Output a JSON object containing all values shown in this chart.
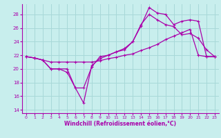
{
  "xlabel": "Windchill (Refroidissement éolien,°C)",
  "bg_color": "#c8eeed",
  "grid_color": "#a8d8d8",
  "line_color": "#aa00aa",
  "xlim": [
    -0.5,
    23.5
  ],
  "ylim": [
    13.5,
    29.5
  ],
  "yticks": [
    14,
    16,
    18,
    20,
    22,
    24,
    26,
    28
  ],
  "xticks": [
    0,
    1,
    2,
    3,
    4,
    5,
    6,
    7,
    8,
    9,
    10,
    11,
    12,
    13,
    14,
    15,
    16,
    17,
    18,
    19,
    20,
    21,
    22,
    23
  ],
  "s1_x": [
    0,
    1,
    2,
    3,
    4,
    5,
    6,
    7,
    8,
    9,
    10,
    11,
    12,
    13,
    14,
    15,
    16,
    17,
    18,
    19,
    20,
    21,
    22,
    23
  ],
  "s1_y": [
    21.8,
    21.6,
    21.3,
    20.0,
    20.0,
    20.0,
    17.2,
    15.0,
    20.5,
    21.5,
    22.0,
    22.5,
    23.0,
    24.0,
    26.3,
    29.0,
    28.2,
    28.0,
    26.5,
    27.0,
    27.2,
    27.0,
    21.8,
    21.8
  ],
  "s2_x": [
    0,
    1,
    2,
    3,
    4,
    5,
    6,
    7,
    8,
    9,
    10,
    11,
    12,
    13,
    14,
    15,
    16,
    17,
    18,
    19,
    20,
    21,
    22,
    23
  ],
  "s2_y": [
    21.8,
    21.6,
    21.3,
    20.0,
    20.0,
    19.5,
    17.2,
    17.2,
    20.3,
    21.8,
    22.0,
    22.5,
    22.8,
    24.0,
    26.5,
    28.0,
    27.2,
    26.5,
    26.2,
    25.0,
    25.2,
    24.5,
    22.8,
    21.8
  ],
  "s3_x": [
    0,
    1,
    2,
    3,
    4,
    5,
    6,
    7,
    8,
    9,
    10,
    11,
    12,
    13,
    14,
    15,
    16,
    17,
    18,
    19,
    20,
    21,
    22,
    23
  ],
  "s3_y": [
    21.8,
    21.6,
    21.3,
    21.0,
    21.0,
    21.0,
    21.0,
    21.0,
    21.0,
    21.2,
    21.5,
    21.7,
    22.0,
    22.2,
    22.7,
    23.1,
    23.6,
    24.3,
    24.8,
    25.3,
    25.8,
    22.0,
    21.8,
    21.8
  ]
}
